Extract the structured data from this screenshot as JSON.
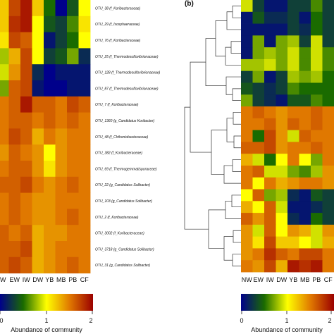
{
  "panel_letter": "(b)",
  "colorscale": [
    "#00008b",
    "#1a6b00",
    "#ffff00",
    "#e07800",
    "#9b0000"
  ],
  "chart_data": [
    {
      "type": "heatmap",
      "columns": [
        "W",
        "EW",
        "IW",
        "DW",
        "YB",
        "MB",
        "PB",
        "CF"
      ],
      "rows": [
        {
          "label": "OTU_38 (f_Koribacteraceae)",
          "values": [
            1.2,
            1.7,
            1.9,
            1.2,
            0.5,
            0.0,
            0.4,
            1.0
          ]
        },
        {
          "label": "OTU_29 (f_Isosphaeraceae)",
          "values": [
            1.2,
            1.8,
            1.9,
            1.0,
            0.4,
            0.3,
            0.6,
            1.1
          ]
        },
        {
          "label": "OTU_76 (f_Koribacteraceae)",
          "values": [
            1.1,
            1.7,
            1.6,
            1.0,
            0.1,
            0.3,
            0.5,
            1.0
          ]
        },
        {
          "label": "OTU_25 (f_Thermodesulfovibrionaceae)",
          "values": [
            0.8,
            1.3,
            1.7,
            1.0,
            0.3,
            0.4,
            0.7,
            0.2
          ]
        },
        {
          "label": "OTU_128 (f_Thermodesulfovibrionaceae)",
          "values": [
            0.9,
            1.4,
            1.7,
            0.2,
            0.0,
            0.1,
            0.1,
            0.1
          ]
        },
        {
          "label": "OTU_87 (f_Thermodesulfovibrionaceae)",
          "values": [
            0.7,
            1.6,
            1.7,
            0.1,
            0.0,
            0.0,
            0.1,
            0.1
          ]
        },
        {
          "label": "OTU_7 (f_Koribacteraceae)",
          "values": [
            1.5,
            1.6,
            1.9,
            1.6,
            1.6,
            1.5,
            1.7,
            1.6
          ]
        },
        {
          "label": "OTU_1360 (g_Candidatus Koribacter)",
          "values": [
            1.5,
            1.6,
            1.6,
            1.5,
            1.6,
            1.5,
            1.6,
            1.5
          ]
        },
        {
          "label": "OTU_48 (f_Chthoniobacteraceae)",
          "values": [
            1.5,
            1.7,
            1.6,
            1.3,
            1.5,
            1.4,
            1.5,
            1.5
          ]
        },
        {
          "label": "OTU_382 (f_Koribacteraceae)",
          "values": [
            1.4,
            1.6,
            1.5,
            1.4,
            1.0,
            1.4,
            1.5,
            1.5
          ]
        },
        {
          "label": "OTU_69 (f_Thermogemmatisporaceae)",
          "values": [
            1.5,
            1.6,
            1.6,
            1.4,
            1.1,
            1.4,
            1.5,
            1.5
          ]
        },
        {
          "label": "OTU_22 (g_Candidatus Solibacter)",
          "values": [
            1.6,
            1.6,
            1.7,
            1.5,
            1.4,
            1.5,
            1.6,
            1.5
          ]
        },
        {
          "label": "OTU_103 (g_Candidatus Solibacter)",
          "values": [
            1.5,
            1.6,
            1.5,
            1.4,
            1.4,
            1.5,
            1.5,
            1.5
          ]
        },
        {
          "label": "OTU_2 (f_Koribacteraceae)",
          "values": [
            1.5,
            1.6,
            1.5,
            1.4,
            1.4,
            1.5,
            1.6,
            1.5
          ]
        },
        {
          "label": "OTU_3002 (f_Koribacteraceae)",
          "values": [
            1.6,
            1.5,
            1.6,
            1.3,
            1.4,
            1.4,
            1.5,
            1.5
          ]
        },
        {
          "label": "OTU_3718 (g_Candidatus Solibacter)",
          "values": [
            1.6,
            1.6,
            1.7,
            1.3,
            1.4,
            1.5,
            1.5,
            1.5
          ]
        },
        {
          "label": "OTU_31 (g_Candidatus Solibacter)",
          "values": [
            1.6,
            1.7,
            1.6,
            1.3,
            1.4,
            1.5,
            1.6,
            1.5
          ]
        }
      ],
      "colorbar": {
        "ticks": [
          "0",
          "1",
          "2"
        ],
        "range": [
          0,
          2
        ],
        "title": "Abundance of community"
      }
    },
    {
      "type": "heatmap",
      "columns": [
        "NW",
        "EW",
        "IW",
        "DW",
        "YB",
        "MB",
        "PB",
        "CF"
      ],
      "rows": [
        {
          "values": [
            0.9,
            0.3,
            0.1,
            0.1,
            0.3,
            0.3,
            0.6,
            0.3
          ]
        },
        {
          "values": [
            0.1,
            0.4,
            0.2,
            0.2,
            0.3,
            0.1,
            0.5,
            0.3
          ]
        },
        {
          "values": [
            0.1,
            0.1,
            0.1,
            0.1,
            0.3,
            0.2,
            0.5,
            0.3
          ]
        },
        {
          "values": [
            0.1,
            0.7,
            0.1,
            0.7,
            0.8,
            0.3,
            0.9,
            0.3
          ]
        },
        {
          "values": [
            0.1,
            0.7,
            0.8,
            0.7,
            0.9,
            0.6,
            0.9,
            0.6
          ]
        },
        {
          "values": [
            0.8,
            0.8,
            0.9,
            0.7,
            0.9,
            0.6,
            0.9,
            0.6
          ]
        },
        {
          "values": [
            0.3,
            0.7,
            0.1,
            0.3,
            0.8,
            0.7,
            0.8,
            0.5
          ]
        },
        {
          "values": [
            0.4,
            0.3,
            0.2,
            0.3,
            0.6,
            0.5,
            0.5,
            0.5
          ]
        },
        {
          "values": [
            0.7,
            0.3,
            0.2,
            0.1,
            0.4,
            0.4,
            0.6,
            0.5
          ]
        },
        {
          "values": [
            1.5,
            1.6,
            1.5,
            1.4,
            1.5,
            1.5,
            1.6,
            1.5
          ]
        },
        {
          "values": [
            1.5,
            1.5,
            1.6,
            1.4,
            1.6,
            1.5,
            1.6,
            1.5
          ]
        },
        {
          "values": [
            1.5,
            0.5,
            1.7,
            1.4,
            0.9,
            1.6,
            1.5,
            1.5
          ]
        },
        {
          "values": [
            1.6,
            1.6,
            1.7,
            1.4,
            1.5,
            1.5,
            1.6,
            1.5
          ]
        },
        {
          "values": [
            1.3,
            0.9,
            0.5,
            1.0,
            1.5,
            1.0,
            0.7,
            1.5
          ]
        },
        {
          "values": [
            1.5,
            1.6,
            0.9,
            0.9,
            0.7,
            0.6,
            0.8,
            1.4
          ]
        },
        {
          "values": [
            1.5,
            1.0,
            1.5,
            1.3,
            1.4,
            1.5,
            1.5,
            1.4
          ]
        },
        {
          "values": [
            1.0,
            1.6,
            0.7,
            0.8,
            0.2,
            0.1,
            0.4,
            0.3
          ]
        },
        {
          "values": [
            1.3,
            1.0,
            1.6,
            0.9,
            0.1,
            0.1,
            0.2,
            0.3
          ]
        },
        {
          "values": [
            1.6,
            1.4,
            1.6,
            1.0,
            0.2,
            0.1,
            0.5,
            0.3
          ]
        },
        {
          "values": [
            1.4,
            0.9,
            1.6,
            1.0,
            1.4,
            1.3,
            0.9,
            1.4
          ]
        },
        {
          "values": [
            1.4,
            1.1,
            1.7,
            1.2,
            1.2,
            1.0,
            0.9,
            1.3
          ]
        },
        {
          "values": [
            1.4,
            1.5,
            1.8,
            1.6,
            1.5,
            1.7,
            1.7,
            1.5
          ]
        },
        {
          "values": [
            1.5,
            1.4,
            1.7,
            1.3,
            1.9,
            1.8,
            1.9,
            1.5
          ]
        }
      ],
      "colorbar": {
        "ticks": [
          "0",
          "1",
          "2"
        ],
        "range": [
          0,
          2
        ],
        "title": "Abundance of community"
      }
    }
  ]
}
